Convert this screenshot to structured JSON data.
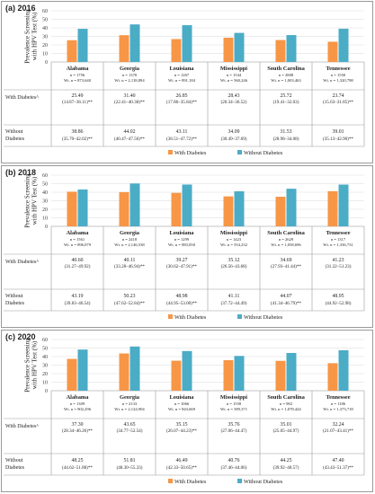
{
  "colors": {
    "with_diabetes": "#f79646",
    "without_diabetes": "#4bacc6"
  },
  "chart_data": [
    {
      "type": "bar",
      "title": "(a) 2016",
      "ylabel": "Prevalence Screening with HPV Test (%)",
      "ylim": [
        0,
        60
      ],
      "yticks": [
        0,
        10,
        20,
        30,
        40,
        50,
        60
      ],
      "grid": true,
      "legend_position": "bottom",
      "categories": [
        "Alabama",
        "Georgia",
        "Louisiana",
        "Mississippi",
        "South Carolina",
        "Tennessee"
      ],
      "n": [
        "n = 1756",
        "n = 1370",
        "n = 1267",
        "n = 1544",
        "n = 2808",
        "n = 1550"
      ],
      "wt_n": [
        "Wt. n = 873,640",
        "Wt. n = 2,118,894",
        "Wt. n = 891,184",
        "Wt. n = 560,246",
        "Wt. n = 1,003,463",
        "Wt. n = 1,320,798"
      ],
      "row_labels": [
        "With Diabetes^",
        "Without\nDiabetes"
      ],
      "series": [
        {
          "name": "With Diabetes",
          "values": [
            25.49,
            31.4,
            26.85,
            28.43,
            25.72,
            23.74
          ],
          "ci": [
            "(14.87–36.11)**",
            "(22.41–40.38)**",
            "(17.86–35.84)**",
            "(20.34–36.52)",
            "(19.41–32.03)",
            "(15.63–31.85)**"
          ]
        },
        {
          "name": "Without Diabetes",
          "values": [
            38.86,
            44.02,
            43.11,
            34.09,
            31.53,
            39.01
          ],
          "ci": [
            "(35.70–42.02)**",
            "(40.47–47.56)**",
            "(38.51–47.72)**",
            "(30.49–37.69)",
            "(28.98–34.08)",
            "(35.13–42.90)**"
          ]
        }
      ]
    },
    {
      "type": "bar",
      "title": "(b) 2018",
      "ylabel": "Prevalence Screening with HPV Test (%)",
      "ylim": [
        0,
        60
      ],
      "yticks": [
        0,
        10,
        20,
        30,
        40,
        50,
        60
      ],
      "grid": true,
      "legend_position": "bottom",
      "categories": [
        "Alabama",
        "Georgia",
        "Louisiana",
        "Mississippi",
        "South Carolina",
        "Tennessee"
      ],
      "n": [
        "n = 1561",
        "n = 2418",
        "n = 1299",
        "n = 1423",
        "n = 2629",
        "n = 1317"
      ],
      "wt_n": [
        "Wt. n = 896,079",
        "Wt. n = 2,146,538",
        "Wt. n = 883,850",
        "Wt. n = 554,232",
        "Wt. n = 1,058,696",
        "Wt. n = 1,336,731"
      ],
      "row_labels": [
        "With Diabetes^",
        "Without\nDiabetes"
      ],
      "series": [
        {
          "name": "With Diabetes",
          "values": [
            40.6,
            40.11,
            39.27,
            35.12,
            34.69,
            41.23
          ],
          "ci": [
            "(31.27–49.92)",
            "(33.28–46.94)**",
            "(30.62–47.91)**",
            "(26.56–43.68)",
            "(27.93–41.44)**",
            "(31.22–51.23)"
          ]
        },
        {
          "name": "Without Diabetes",
          "values": [
            43.19,
            50.23,
            48.98,
            41.11,
            44.07,
            48.95
          ],
          "ci": [
            "(39.83–46.54)",
            "(47.62–52.84)**",
            "(44.95–53.00)**",
            "(37.72–44.49)",
            "(41.34–46.79)**",
            "(44.92–52.98)"
          ]
        }
      ]
    },
    {
      "type": "bar",
      "title": "(c) 2020",
      "ylabel": "Prevalence Screening with HPV Test (%)",
      "ylim": [
        0,
        60
      ],
      "yticks": [
        0,
        10,
        20,
        30,
        40,
        50,
        60
      ],
      "grid": true,
      "legend_position": "bottom",
      "categories": [
        "Alabama",
        "Georgia",
        "Louisiana",
        "Mississippi",
        "South Carolina",
        "Tennessee"
      ],
      "n": [
        "n = 1309",
        "n = 2133",
        "n = 1066",
        "n = 1558",
        "n = 982",
        "n = 1186"
      ],
      "wt_n": [
        "Wt. n = 902,296",
        "Wt. n = 2,124,904",
        "Wt. n = 843,669",
        "Wt. n = 589,371",
        "Wt. n = 1,078,424",
        "Wt. n = 1,373,718"
      ],
      "row_labels": [
        "With Diabetes^",
        "Without\nDiabetes"
      ],
      "series": [
        {
          "name": "With Diabetes",
          "values": [
            37.3,
            43.65,
            35.15,
            35.76,
            35.01,
            32.24
          ],
          "ci": [
            "(28.34–46.26)**",
            "(34.77–52.54)",
            "(26.07–44.23)**",
            "(27.06–44.47)",
            "(25.05–44.97)",
            "(21.07–43.41)**"
          ]
        },
        {
          "name": "Without Diabetes",
          "values": [
            48.25,
            51.81,
            46.49,
            40.76,
            44.25,
            47.4
          ],
          "ci": [
            "(44.62–51.88)**",
            "(48.30–55.33)",
            "(42.33–50.65)**",
            "(37.46–44.06)",
            "(39.92–48.57)",
            "(43.43–51.37)**"
          ]
        }
      ]
    }
  ]
}
